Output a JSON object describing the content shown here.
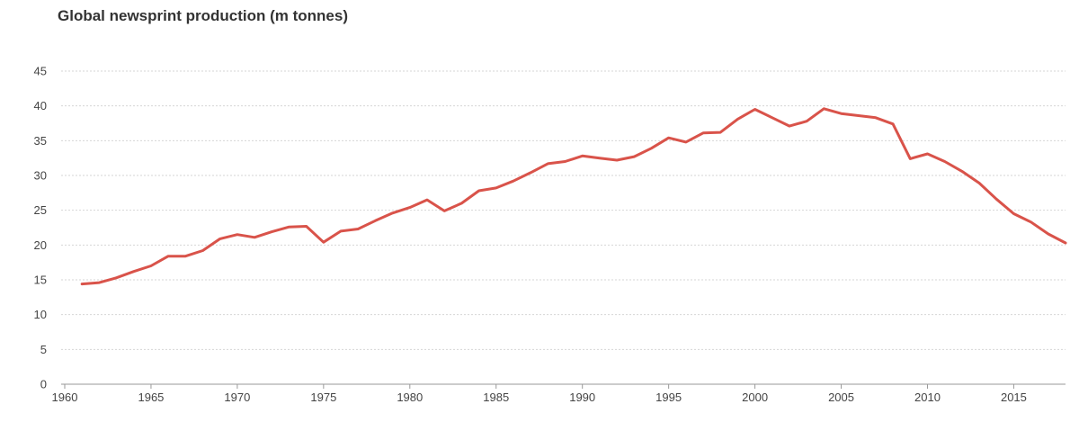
{
  "colors": {
    "line": "#d9534a",
    "grid": "#d6d6d6",
    "axis": "#999999",
    "text": "#444444"
  },
  "chart_data": {
    "type": "line",
    "title": "Global newsprint production (m tonnes)",
    "xlabel": "",
    "ylabel": "",
    "xlim": [
      1960,
      2018
    ],
    "ylim": [
      0,
      45
    ],
    "grid": true,
    "x_ticks": [
      1960,
      1965,
      1970,
      1975,
      1980,
      1985,
      1990,
      1995,
      2000,
      2005,
      2010,
      2015
    ],
    "y_ticks": [
      0,
      5,
      10,
      15,
      20,
      25,
      30,
      35,
      40,
      45
    ],
    "series": [
      {
        "x": [
          1961,
          1962,
          1963,
          1964,
          1965,
          1966,
          1967,
          1968,
          1969,
          1970,
          1971,
          1972,
          1973,
          1974,
          1975,
          1976,
          1977,
          1978,
          1979,
          1980,
          1981,
          1982,
          1983,
          1984,
          1985,
          1986,
          1987,
          1988,
          1989,
          1990,
          1991,
          1992,
          1993,
          1994,
          1995,
          1996,
          1997,
          1998,
          1999,
          2000,
          2001,
          2002,
          2003,
          2004,
          2005,
          2006,
          2007,
          2008,
          2009,
          2010,
          2011,
          2012,
          2013,
          2014,
          2015,
          2016,
          2017,
          2018
        ],
        "y": [
          14.4,
          14.6,
          15.3,
          16.2,
          17.0,
          18.4,
          18.4,
          19.2,
          20.9,
          21.5,
          21.1,
          21.9,
          22.6,
          22.7,
          20.4,
          22.0,
          22.3,
          23.5,
          24.6,
          25.4,
          26.5,
          24.9,
          26.0,
          27.8,
          28.2,
          29.2,
          30.4,
          31.7,
          32.0,
          32.8,
          32.5,
          32.2,
          32.7,
          33.9,
          35.4,
          34.8,
          36.1,
          36.2,
          38.1,
          39.5,
          38.3,
          37.1,
          37.8,
          39.6,
          38.9,
          38.6,
          38.3,
          37.4,
          32.4,
          33.1,
          32.0,
          30.6,
          28.9,
          26.6,
          24.5,
          23.3,
          21.6,
          20.3
        ]
      }
    ]
  }
}
